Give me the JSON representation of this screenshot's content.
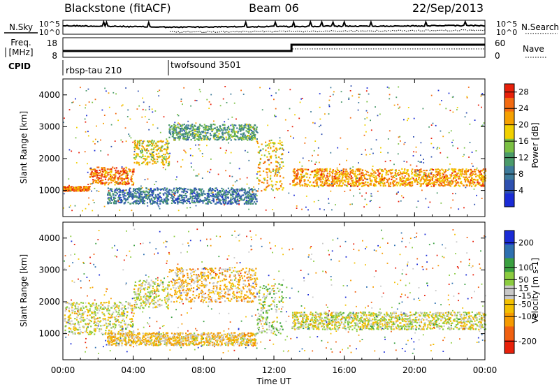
{
  "header": {
    "station": "Blackstone (fitACF)",
    "beam": "Beam 06",
    "date": "22/Sep/2013"
  },
  "noise_panel": {
    "left_label": "N.Sky",
    "right_label": "N.Search",
    "left_ticks": [
      "10^5",
      "10^0"
    ],
    "right_ticks": [
      "10^5",
      "10^0"
    ]
  },
  "freq_panel": {
    "left_label_top": "Freq.",
    "left_label_bottom": "[MHz]",
    "right_label": "Nave",
    "left_ticks": [
      "18",
      "8"
    ],
    "right_ticks": [
      "60",
      "0"
    ]
  },
  "cpid_panel": {
    "label": "CPID",
    "segments": [
      {
        "name": "rbsp-tau 210",
        "start_h": 0,
        "end_h": 6
      },
      {
        "name": "twofsound 3501",
        "start_h": 6,
        "end_h": 24
      }
    ]
  },
  "x_axis": {
    "label": "Time UT",
    "ticks": [
      "00:00",
      "04:00",
      "08:00",
      "12:00",
      "16:00",
      "20:00",
      "00:00"
    ],
    "tick_hours": [
      0,
      4,
      8,
      12,
      16,
      20,
      24
    ]
  },
  "chart_data": [
    {
      "type": "heatmap",
      "panel": "power",
      "ylabel": "Slant Range [km]",
      "yticks": [
        "1000",
        "2000",
        "3000",
        "4000"
      ],
      "ytick_values": [
        1000,
        2000,
        3000,
        4000
      ],
      "ylim": [
        180,
        4500
      ],
      "xlim_hours": [
        0,
        24
      ],
      "colorbar": {
        "label": "Power [dB]",
        "ticks": [
          "4",
          "8",
          "12",
          "16",
          "20",
          "24",
          "28"
        ],
        "tick_values": [
          4,
          8,
          12,
          16,
          20,
          24,
          28
        ],
        "range": [
          0,
          30
        ],
        "colors": [
          "#1a2bd6",
          "#2e50b0",
          "#3d7a9a",
          "#4a9a6a",
          "#7bc043",
          "#f1d000",
          "#f5a000",
          "#f36a10",
          "#e8200a"
        ]
      },
      "echo_bands": [
        {
          "t0": 0.0,
          "t1": 1.5,
          "r0": 1000,
          "r1": 1150,
          "level": 24
        },
        {
          "t0": 1.5,
          "t1": 4.0,
          "r0": 1200,
          "r1": 1750,
          "level": 24
        },
        {
          "t0": 4.0,
          "t1": 6.0,
          "r0": 1800,
          "r1": 2600,
          "level": 18
        },
        {
          "t0": 6.0,
          "t1": 11.0,
          "r0": 2600,
          "r1": 3100,
          "level": 12
        },
        {
          "t0": 11.0,
          "t1": 12.5,
          "r0": 1000,
          "r1": 2600,
          "level": 20
        },
        {
          "t0": 13.0,
          "t1": 24.0,
          "r0": 1150,
          "r1": 1700,
          "level": 22
        },
        {
          "t0": 2.5,
          "t1": 11.0,
          "r0": 600,
          "r1": 1100,
          "level": 8
        }
      ]
    },
    {
      "type": "heatmap",
      "panel": "velocity",
      "ylabel": "Slant Range [km]",
      "yticks": [
        "1000",
        "2000",
        "3000",
        "4000"
      ],
      "ytick_values": [
        1000,
        2000,
        3000,
        4000
      ],
      "ylim": [
        180,
        4500
      ],
      "xlim_hours": [
        0,
        24
      ],
      "colorbar": {
        "label": "Velocity [m s-1]",
        "ticks": [
          "200",
          "100",
          "50",
          "15",
          "-15",
          "-50",
          "-100",
          "-200"
        ],
        "tick_values": [
          200,
          100,
          50,
          15,
          -15,
          -50,
          -100,
          -200
        ],
        "range": [
          -250,
          250
        ],
        "colors": [
          "#e8200a",
          "#f06010",
          "#f59a00",
          "#f3c000",
          "#c8c8c8",
          "#8ccc40",
          "#3aa040",
          "#2e70b0",
          "#1a2bd6"
        ]
      },
      "echo_bands": [
        {
          "t0": 0.0,
          "t1": 4.0,
          "r0": 1000,
          "r1": 2000,
          "level": 0
        },
        {
          "t0": 4.0,
          "t1": 6.0,
          "r0": 1800,
          "r1": 2700,
          "level": 0
        },
        {
          "t0": 6.0,
          "t1": 11.0,
          "r0": 2000,
          "r1": 3100,
          "level": -60
        },
        {
          "t0": 11.0,
          "t1": 12.5,
          "r0": 1000,
          "r1": 2600,
          "level": 40
        },
        {
          "t0": 13.0,
          "t1": 24.0,
          "r0": 1150,
          "r1": 1700,
          "level": 0
        },
        {
          "t0": 2.5,
          "t1": 11.0,
          "r0": 650,
          "r1": 1050,
          "level": -50
        }
      ]
    }
  ]
}
